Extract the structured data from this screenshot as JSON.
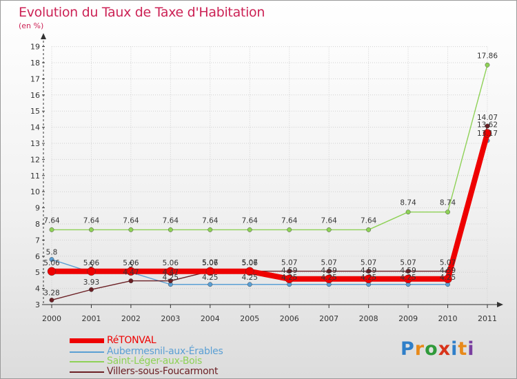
{
  "title": "Evolution du Taux de Taxe d'Habitation",
  "units": "(en %)",
  "logo": {
    "text": "Proxiti",
    "colors": [
      "#2f7fc9",
      "#e88a1b",
      "#2f9a3a",
      "#d8331a",
      "#2f7fc9",
      "#e88a1b",
      "#7a3fa0"
    ]
  },
  "colors": {
    "retonval": "#ee0000",
    "aubermesnil": "#5a9fd4",
    "saint_leger": "#8ed156",
    "villers": "#6b1f24",
    "axis": "#333333",
    "grid": "#d0d0d0",
    "labels": "#333333"
  },
  "chart_data": {
    "type": "line",
    "title": "Evolution du Taux de Taxe d'Habitation",
    "ylabel": "(en %)",
    "xlabel": "",
    "ylim": [
      3,
      19
    ],
    "yticks": [
      3,
      4,
      5,
      6,
      7,
      8,
      9,
      10,
      11,
      12,
      13,
      14,
      15,
      16,
      17,
      18,
      19
    ],
    "categories": [
      "2000",
      "2001",
      "2002",
      "2003",
      "2004",
      "2005",
      "2006",
      "2007",
      "2008",
      "2009",
      "2010",
      "2011"
    ],
    "series": [
      {
        "key": "retonval",
        "name": "RéTONVAL",
        "values": [
          5.06,
          5.06,
          5.06,
          5.06,
          5.06,
          5.06,
          4.59,
          4.59,
          4.59,
          4.59,
          4.59,
          13.62
        ],
        "labels": [
          "5.06",
          "5.06",
          "5.06",
          "5.06",
          "5.06",
          "5.06",
          "4.59",
          "4.59",
          "4.59",
          "4.59",
          "4.59",
          "13.62"
        ]
      },
      {
        "key": "aubermesnil",
        "name": "Aubermesnil-aux-Érables",
        "values": [
          5.8,
          5.0,
          5.0,
          4.25,
          4.25,
          4.25,
          4.25,
          4.25,
          4.25,
          4.25,
          4.25,
          13.17
        ],
        "labels": [
          "5.8",
          "5",
          "5",
          "4.25",
          "4.25",
          "4.25",
          "4.25",
          "4.25",
          "4.25",
          "4.25",
          "4.25",
          "13.17"
        ]
      },
      {
        "key": "saint_leger",
        "name": "Saint-Léger-aux-Bois",
        "values": [
          7.64,
          7.64,
          7.64,
          7.64,
          7.64,
          7.64,
          7.64,
          7.64,
          7.64,
          8.74,
          8.74,
          17.86
        ],
        "labels": [
          "7.64",
          "7.64",
          "7.64",
          "7.64",
          "7.64",
          "7.64",
          "7.64",
          "7.64",
          "7.64",
          "8.74",
          "8.74",
          "17.86"
        ]
      },
      {
        "key": "villers",
        "name": "Villers-sous-Foucarmont",
        "values": [
          3.28,
          3.93,
          4.47,
          4.47,
          5.07,
          5.07,
          5.07,
          5.07,
          5.07,
          5.07,
          5.07,
          14.07
        ],
        "labels": [
          "3.28",
          "3.93",
          "4.47",
          "4.47",
          "5.07",
          "5.07",
          "5.07",
          "5.07",
          "5.07",
          "5.07",
          "5.07",
          "14.07"
        ]
      }
    ],
    "legend_position": "bottom-left"
  }
}
